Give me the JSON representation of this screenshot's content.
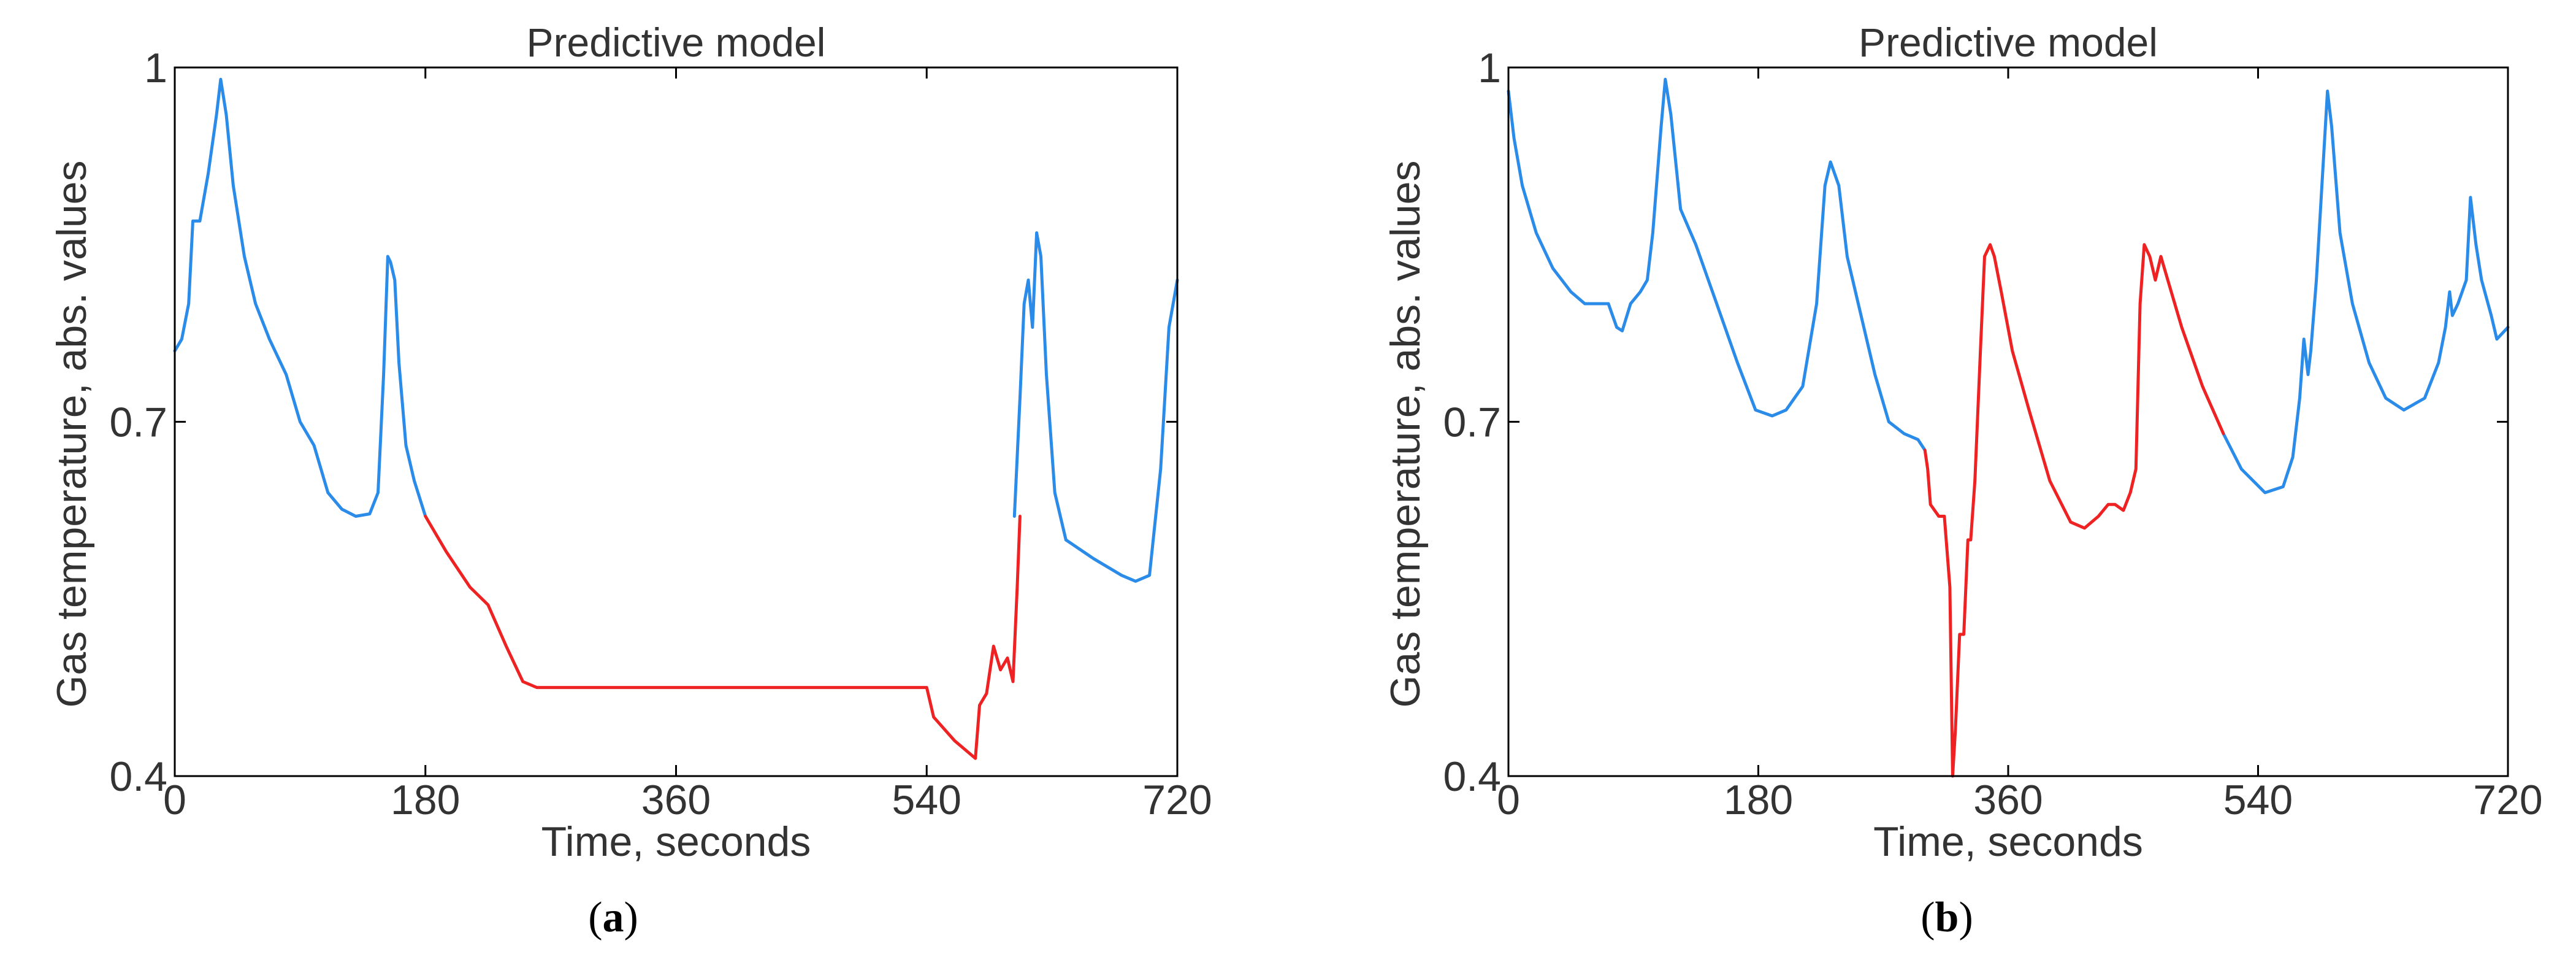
{
  "chart_data": [
    {
      "panel": "(a)",
      "panel_letter": "a",
      "type": "line",
      "title": "Predictive model",
      "xlabel": "Time, seconds",
      "ylabel": "Gas temperature, abs. values",
      "xlim": [
        0,
        720
      ],
      "ylim": [
        0.4,
        1
      ],
      "xticks": [
        0,
        180,
        360,
        540,
        720
      ],
      "yticks": [
        0.4,
        0.7,
        1
      ],
      "xtick_labels": [
        "0",
        "180",
        "360",
        "540",
        "720"
      ],
      "ytick_labels": [
        "0.4",
        "0.7",
        "1"
      ],
      "grid": false,
      "series": [
        {
          "color": "#2b8be8",
          "segments": [
            [
              [
                0,
                0.76
              ],
              [
                5,
                0.77
              ],
              [
                10,
                0.8
              ],
              [
                13,
                0.87
              ],
              [
                18,
                0.87
              ],
              [
                24,
                0.91
              ],
              [
                30,
                0.96
              ],
              [
                33,
                0.99
              ],
              [
                37,
                0.96
              ],
              [
                42,
                0.9
              ],
              [
                50,
                0.84
              ],
              [
                58,
                0.8
              ],
              [
                68,
                0.77
              ],
              [
                80,
                0.74
              ],
              [
                90,
                0.7
              ],
              [
                100,
                0.68
              ],
              [
                110,
                0.64
              ],
              [
                120,
                0.626
              ],
              [
                130,
                0.62
              ],
              [
                140,
                0.622
              ],
              [
                146,
                0.64
              ],
              [
                150,
                0.74
              ],
              [
                153,
                0.84
              ],
              [
                155,
                0.835
              ],
              [
                158,
                0.82
              ],
              [
                161,
                0.75
              ],
              [
                166,
                0.68
              ],
              [
                172,
                0.65
              ],
              [
                180,
                0.62
              ]
            ],
            [
              [
                603,
                0.62
              ],
              [
                607,
                0.72
              ],
              [
                610,
                0.8
              ],
              [
                613,
                0.82
              ],
              [
                616,
                0.78
              ],
              [
                619,
                0.86
              ],
              [
                622,
                0.84
              ],
              [
                626,
                0.74
              ],
              [
                632,
                0.64
              ],
              [
                640,
                0.6
              ],
              [
                660,
                0.584
              ],
              [
                680,
                0.57
              ],
              [
                690,
                0.565
              ],
              [
                700,
                0.57
              ],
              [
                708,
                0.66
              ],
              [
                714,
                0.78
              ],
              [
                720,
                0.82
              ]
            ]
          ]
        },
        {
          "color": "#ee2222",
          "segments": [
            [
              [
                180,
                0.62
              ],
              [
                195,
                0.59
              ],
              [
                212,
                0.56
              ],
              [
                225,
                0.545
              ],
              [
                238,
                0.51
              ],
              [
                250,
                0.48
              ],
              [
                260,
                0.475
              ],
              [
                540,
                0.475
              ],
              [
                545,
                0.45
              ],
              [
                560,
                0.43
              ],
              [
                575,
                0.415
              ],
              [
                578,
                0.46
              ],
              [
                583,
                0.47
              ],
              [
                588,
                0.51
              ],
              [
                593,
                0.49
              ],
              [
                598,
                0.5
              ],
              [
                602,
                0.48
              ],
              [
                605,
                0.56
              ],
              [
                607,
                0.62
              ]
            ]
          ]
        }
      ]
    },
    {
      "panel": "(b)",
      "panel_letter": "b",
      "type": "line",
      "title": "Predictive model",
      "xlabel": "Time, seconds",
      "ylabel": "Gas temperature, abs. values",
      "xlim": [
        0,
        720
      ],
      "ylim": [
        0.4,
        1
      ],
      "xticks": [
        0,
        180,
        360,
        540,
        720
      ],
      "yticks": [
        0.4,
        0.7,
        1
      ],
      "xtick_labels": [
        "0",
        "180",
        "360",
        "540",
        "720"
      ],
      "ytick_labels": [
        "0.4",
        "0.7",
        "1"
      ],
      "grid": false,
      "series": [
        {
          "color": "#2b8be8",
          "segments": [
            [
              [
                0,
                0.98
              ],
              [
                4,
                0.94
              ],
              [
                10,
                0.9
              ],
              [
                20,
                0.86
              ],
              [
                32,
                0.83
              ],
              [
                45,
                0.81
              ],
              [
                55,
                0.8
              ],
              [
                68,
                0.8
              ],
              [
                72,
                0.8
              ],
              [
                78,
                0.78
              ],
              [
                82,
                0.777
              ],
              [
                88,
                0.8
              ],
              [
                95,
                0.81
              ],
              [
                100,
                0.82
              ],
              [
                104,
                0.86
              ],
              [
                110,
                0.95
              ],
              [
                113,
                0.99
              ],
              [
                117,
                0.96
              ],
              [
                124,
                0.88
              ],
              [
                135,
                0.85
              ],
              [
                150,
                0.8
              ],
              [
                165,
                0.75
              ],
              [
                178,
                0.71
              ],
              [
                190,
                0.705
              ],
              [
                200,
                0.71
              ],
              [
                212,
                0.73
              ],
              [
                222,
                0.8
              ],
              [
                228,
                0.9
              ],
              [
                232,
                0.92
              ],
              [
                238,
                0.9
              ],
              [
                244,
                0.84
              ],
              [
                252,
                0.8
              ],
              [
                264,
                0.74
              ],
              [
                274,
                0.7
              ],
              [
                285,
                0.69
              ],
              [
                295,
                0.685
              ],
              [
                300,
                0.676
              ]
            ],
            [
              [
                515,
                0.69
              ],
              [
                528,
                0.66
              ],
              [
                545,
                0.64
              ],
              [
                558,
                0.645
              ],
              [
                565,
                0.67
              ],
              [
                570,
                0.72
              ],
              [
                573,
                0.77
              ],
              [
                576,
                0.74
              ],
              [
                578,
                0.76
              ],
              [
                582,
                0.82
              ],
              [
                586,
                0.9
              ],
              [
                590,
                0.98
              ],
              [
                593,
                0.95
              ],
              [
                599,
                0.86
              ],
              [
                608,
                0.8
              ],
              [
                620,
                0.75
              ],
              [
                632,
                0.72
              ],
              [
                645,
                0.71
              ],
              [
                660,
                0.72
              ],
              [
                670,
                0.75
              ],
              [
                675,
                0.78
              ],
              [
                678,
                0.81
              ],
              [
                680,
                0.79
              ],
              [
                684,
                0.8
              ],
              [
                690,
                0.82
              ],
              [
                693,
                0.89
              ],
              [
                697,
                0.85
              ],
              [
                701,
                0.82
              ],
              [
                708,
                0.79
              ],
              [
                712,
                0.77
              ],
              [
                720,
                0.78
              ]
            ]
          ]
        },
        {
          "color": "#ee2222",
          "segments": [
            [
              [
                300,
                0.676
              ],
              [
                302,
                0.66
              ],
              [
                304,
                0.63
              ],
              [
                310,
                0.62
              ],
              [
                314,
                0.62
              ],
              [
                318,
                0.56
              ],
              [
                320,
                0.4
              ],
              [
                322,
                0.44
              ],
              [
                325,
                0.52
              ],
              [
                328,
                0.52
              ],
              [
                331,
                0.6
              ],
              [
                333,
                0.6
              ],
              [
                336,
                0.65
              ],
              [
                340,
                0.76
              ],
              [
                343,
                0.84
              ],
              [
                347,
                0.85
              ],
              [
                350,
                0.84
              ],
              [
                355,
                0.81
              ],
              [
                363,
                0.76
              ],
              [
                375,
                0.71
              ],
              [
                390,
                0.65
              ],
              [
                405,
                0.615
              ],
              [
                415,
                0.61
              ],
              [
                425,
                0.62
              ],
              [
                432,
                0.63
              ],
              [
                437,
                0.63
              ],
              [
                443,
                0.625
              ],
              [
                448,
                0.64
              ],
              [
                452,
                0.66
              ],
              [
                455,
                0.8
              ],
              [
                458,
                0.85
              ],
              [
                462,
                0.84
              ],
              [
                466,
                0.82
              ],
              [
                470,
                0.84
              ],
              [
                475,
                0.82
              ],
              [
                485,
                0.78
              ],
              [
                500,
                0.73
              ],
              [
                515,
                0.69
              ]
            ]
          ]
        }
      ]
    }
  ]
}
